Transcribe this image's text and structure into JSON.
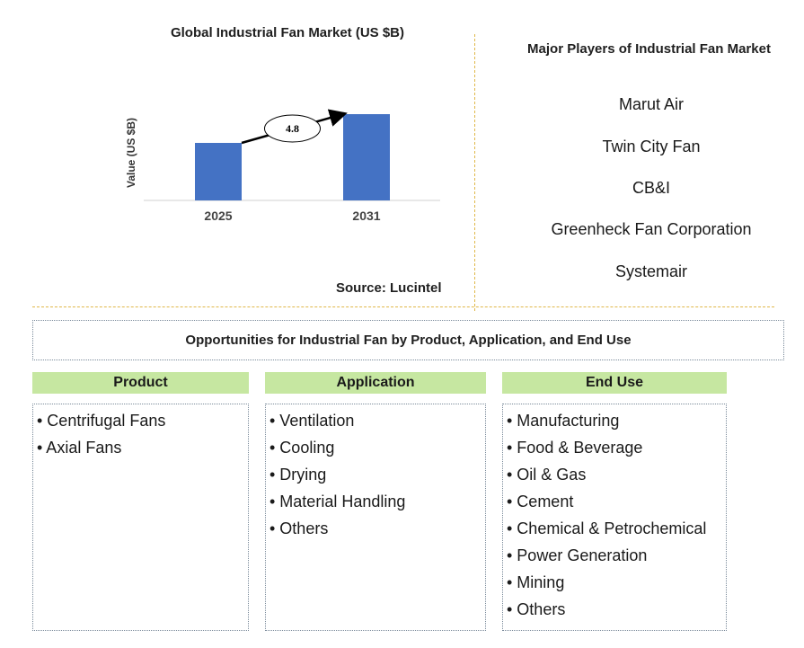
{
  "chart_data": {
    "type": "bar",
    "title": "Global Industrial Fan Market (US $B)",
    "categories": [
      "2025",
      "2031"
    ],
    "values": [
      3.2,
      4.8
    ],
    "ylabel": "Value (US $B)",
    "xlabel": "",
    "annotation": "4.8",
    "colors": {
      "bar": "#4472c4",
      "axis": "#d0d0d0"
    }
  },
  "source": "Source: Lucintel",
  "players": {
    "title": "Major Players of Industrial Fan Market",
    "items": [
      "Marut Air",
      "Twin City Fan",
      "CB&I",
      "Greenheck Fan Corporation",
      "Systemair"
    ]
  },
  "opportunities": {
    "title": "Opportunities for Industrial Fan by Product, Application, and End Use",
    "columns": [
      {
        "header": "Product",
        "items": [
          "• Centrifugal Fans",
          "• Axial Fans"
        ]
      },
      {
        "header": "Application",
        "items": [
          "• Ventilation",
          "• Cooling",
          "• Drying",
          "• Material Handling",
          "• Others"
        ]
      },
      {
        "header": "End Use",
        "items": [
          "• Manufacturing",
          "• Food & Beverage",
          "• Oil & Gas",
          "• Cement",
          "• Chemical & Petrochemical",
          "• Power Generation",
          "• Mining",
          "• Others"
        ]
      }
    ]
  },
  "accent": {
    "header_bg": "#c6e7a1",
    "divider": "#e0b84a"
  }
}
